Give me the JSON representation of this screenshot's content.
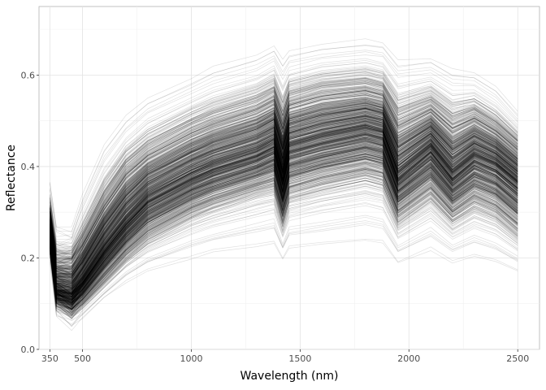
{
  "chart_data": {
    "type": "line",
    "title": "",
    "xlabel": "Wavelength (nm)",
    "ylabel": "Reflectance",
    "xlim": [
      300,
      2600
    ],
    "ylim": [
      0.0,
      0.75
    ],
    "x_ticks": [
      350,
      500,
      1000,
      1500,
      2000,
      2500
    ],
    "y_ticks": [
      0.0,
      0.2,
      0.4,
      0.6
    ],
    "x_tick_labels": [
      "350",
      "500",
      "1000",
      "1500",
      "2000",
      "2500"
    ],
    "y_tick_labels": [
      "0.0",
      "0.2",
      "0.4",
      "0.6"
    ],
    "grid": true,
    "legend": "none",
    "line_color": "#000000",
    "line_opacity": 0.12,
    "series_count": 900,
    "x": [
      350,
      380,
      450,
      500,
      600,
      700,
      800,
      1000,
      1100,
      1300,
      1380,
      1420,
      1450,
      1600,
      1800,
      1880,
      1950,
      2100,
      2200,
      2300,
      2400,
      2500
    ],
    "representative_series": [
      {
        "values": [
          0.39,
          0.3,
          0.3,
          0.38,
          0.5,
          0.56,
          0.6,
          0.64,
          0.665,
          0.69,
          0.71,
          0.695,
          0.7,
          0.71,
          0.72,
          0.715,
          0.69,
          0.68,
          0.665,
          0.64,
          0.61,
          0.55
        ]
      },
      {
        "values": [
          0.3,
          0.2,
          0.2,
          0.24,
          0.33,
          0.4,
          0.44,
          0.49,
          0.51,
          0.54,
          0.56,
          0.5,
          0.55,
          0.57,
          0.58,
          0.57,
          0.51,
          0.54,
          0.5,
          0.52,
          0.49,
          0.45
        ]
      },
      {
        "values": [
          0.25,
          0.13,
          0.12,
          0.15,
          0.22,
          0.28,
          0.33,
          0.38,
          0.4,
          0.43,
          0.45,
          0.38,
          0.44,
          0.46,
          0.48,
          0.47,
          0.38,
          0.44,
          0.38,
          0.42,
          0.4,
          0.36
        ]
      },
      {
        "values": [
          0.22,
          0.1,
          0.08,
          0.1,
          0.15,
          0.2,
          0.24,
          0.29,
          0.31,
          0.34,
          0.35,
          0.28,
          0.33,
          0.35,
          0.37,
          0.36,
          0.28,
          0.33,
          0.28,
          0.31,
          0.29,
          0.25
        ]
      },
      {
        "values": [
          0.2,
          0.06,
          0.04,
          0.06,
          0.1,
          0.13,
          0.15,
          0.17,
          0.18,
          0.19,
          0.195,
          0.17,
          0.185,
          0.19,
          0.195,
          0.19,
          0.16,
          0.18,
          0.16,
          0.17,
          0.16,
          0.145
        ]
      }
    ]
  }
}
